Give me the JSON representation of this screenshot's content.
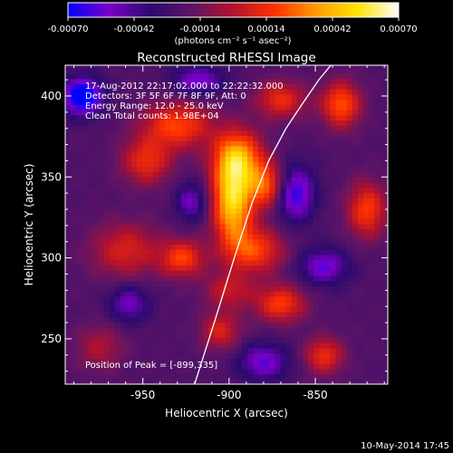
{
  "colorbar": {
    "ticks": [
      "-0.00070",
      "-0.00042",
      "-0.00014",
      "0.00014",
      "0.00042",
      "0.00070"
    ],
    "unit_label": "(photons cm⁻² s⁻¹ asec⁻²)"
  },
  "footer": {
    "date": "10-May-2014 17:45"
  },
  "chart_data": {
    "type": "heatmap",
    "title": "Reconstructed RHESSI Image",
    "xlabel": "Heliocentric X (arcsec)",
    "ylabel": "Heliocentric Y (arcsec)",
    "xlim": [
      -995,
      -808
    ],
    "ylim": [
      222,
      419
    ],
    "x_ticks": [
      "-950",
      "-900",
      "-850"
    ],
    "x_tick_values": [
      -950,
      -900,
      -850
    ],
    "y_ticks": [
      "250",
      "300",
      "350",
      "400"
    ],
    "y_tick_values": [
      250,
      300,
      350,
      400
    ],
    "value_range": [
      -0.0007,
      0.0007
    ],
    "colorscale": [
      "#0000ff",
      "#7b00c8",
      "#2a0a6e",
      "#5e1466",
      "#b4122c",
      "#ff3000",
      "#ff9a00",
      "#ffe400",
      "#ffffff"
    ],
    "annotations": [
      "17-Aug-2012 22:17:02.000 to 22:22:32.000",
      "Detectors: 3F 5F 6F 7F 8F 9F, Att: 0",
      "Energy Range: 12.0 - 25.0 keV",
      "Clean     Total counts: 1.98E+04"
    ],
    "peak_label": "Position of Peak = [-899,335]",
    "peak_position": [
      -899,
      335
    ],
    "limb_curve": {
      "x": [
        -920,
        -908,
        -897,
        -887,
        -877,
        -867,
        -857,
        -848,
        -841
      ],
      "y": [
        222,
        262,
        300,
        333,
        360,
        380,
        396,
        410,
        419
      ]
    },
    "sources": [
      {
        "x": -898,
        "y": 335,
        "sx": 8,
        "sy": 18,
        "amp": 0.0007
      },
      {
        "x": -895,
        "y": 362,
        "sx": 10,
        "sy": 12,
        "amp": 0.00055
      },
      {
        "x": -885,
        "y": 305,
        "sx": 12,
        "sy": 10,
        "amp": 0.0004
      },
      {
        "x": -878,
        "y": 345,
        "sx": 8,
        "sy": 10,
        "amp": 0.00045
      },
      {
        "x": -930,
        "y": 382,
        "sx": 14,
        "sy": 10,
        "amp": 0.00042
      },
      {
        "x": -948,
        "y": 360,
        "sx": 10,
        "sy": 10,
        "amp": 0.00035
      },
      {
        "x": -960,
        "y": 305,
        "sx": 14,
        "sy": 12,
        "amp": 0.0003
      },
      {
        "x": -927,
        "y": 300,
        "sx": 9,
        "sy": 8,
        "amp": 0.0004
      },
      {
        "x": -870,
        "y": 272,
        "sx": 10,
        "sy": 8,
        "amp": 0.0004
      },
      {
        "x": -905,
        "y": 255,
        "sx": 8,
        "sy": 8,
        "amp": 0.0003
      },
      {
        "x": -835,
        "y": 395,
        "sx": 8,
        "sy": 10,
        "amp": 0.00045
      },
      {
        "x": -820,
        "y": 330,
        "sx": 8,
        "sy": 12,
        "amp": 0.0004
      },
      {
        "x": -845,
        "y": 240,
        "sx": 8,
        "sy": 8,
        "amp": 0.00035
      },
      {
        "x": -870,
        "y": 398,
        "sx": 10,
        "sy": 8,
        "amp": 0.00035
      },
      {
        "x": -975,
        "y": 245,
        "sx": 10,
        "sy": 10,
        "amp": 0.0002
      },
      {
        "x": -900,
        "y": 280,
        "sx": 10,
        "sy": 8,
        "amp": 0.00025
      },
      {
        "x": -985,
        "y": 400,
        "sx": 8,
        "sy": 8,
        "amp": -0.0006
      },
      {
        "x": -862,
        "y": 340,
        "sx": 8,
        "sy": 12,
        "amp": -0.00045
      },
      {
        "x": -918,
        "y": 410,
        "sx": 10,
        "sy": 6,
        "amp": -0.00035
      },
      {
        "x": -958,
        "y": 272,
        "sx": 8,
        "sy": 8,
        "amp": -0.0003
      },
      {
        "x": -845,
        "y": 295,
        "sx": 10,
        "sy": 8,
        "amp": -0.00035
      },
      {
        "x": -880,
        "y": 236,
        "sx": 10,
        "sy": 8,
        "amp": -0.00035
      },
      {
        "x": -922,
        "y": 335,
        "sx": 6,
        "sy": 8,
        "amp": -0.0003
      }
    ]
  }
}
